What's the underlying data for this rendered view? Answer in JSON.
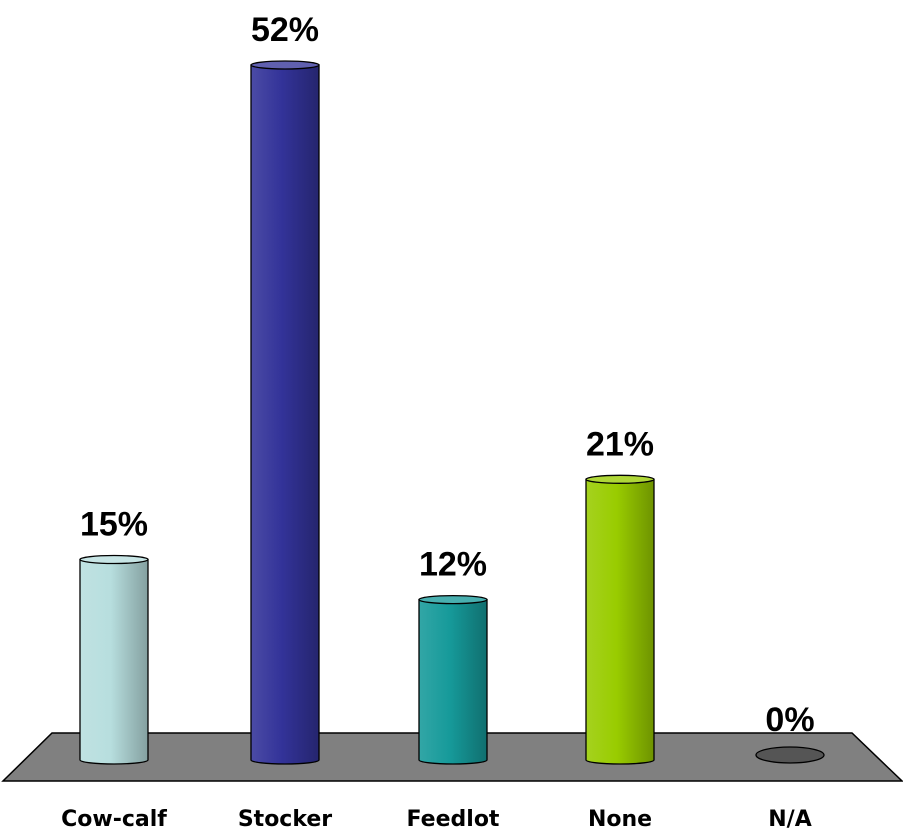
{
  "chart_data": {
    "type": "bar",
    "categories": [
      "Cow-calf",
      "Stocker",
      "Feedlot",
      "None",
      "N/A"
    ],
    "values": [
      15,
      52,
      12,
      21,
      0
    ],
    "value_labels": [
      "15%",
      "52%",
      "12%",
      "21%",
      "0%"
    ],
    "ylim": [
      0,
      52
    ],
    "grid": false,
    "legend": "none",
    "colors": [
      "#b7dede",
      "#333399",
      "#169a9a",
      "#99cc00",
      "#555555"
    ],
    "floor_color": "#808080"
  }
}
